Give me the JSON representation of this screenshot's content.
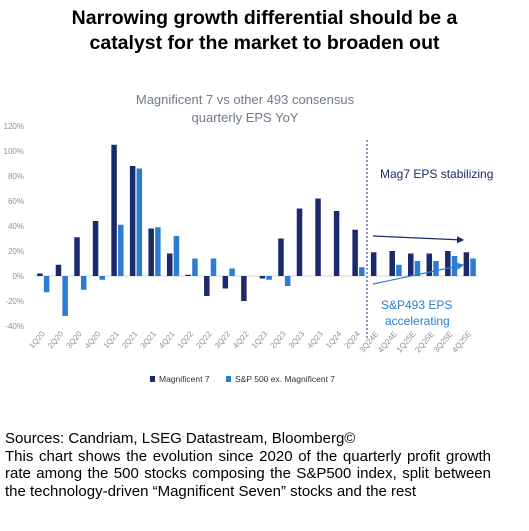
{
  "headline": {
    "line1": "Narrowing growth differential should be a",
    "line2": "catalyst for the market to broaden out"
  },
  "colors": {
    "mag7": "#1b2a6b",
    "sp493": "#2b7cd3",
    "title_gray": "#6e7b8c",
    "axis_gray": "#9aa3ad",
    "annotation_dark": "#1b2a6b",
    "annotation_blue": "#2b7cd3"
  },
  "chart_data": {
    "type": "bar",
    "title_line1": "Magnificent 7 vs other 493 consensus",
    "title_line2": "quarterly EPS YoY",
    "ylim": [
      -40,
      120
    ],
    "yticks": [
      "120%",
      "100%",
      "80%",
      "60%",
      "40%",
      "20%",
      "0%",
      "-20%",
      "-40%"
    ],
    "categories": [
      "1Q20",
      "2Q20",
      "3Q20",
      "4Q20",
      "1Q21",
      "2Q21",
      "3Q21",
      "4Q21",
      "1Q22",
      "2Q22",
      "3Q22",
      "4Q22",
      "1Q23",
      "2Q23",
      "3Q23",
      "4Q23",
      "1Q24",
      "2Q24",
      "3Q24E",
      "4Q24E",
      "1Q25E",
      "2Q25E",
      "3Q25E",
      "4Q25E"
    ],
    "series": [
      {
        "name": "Magnificent 7",
        "values": [
          2,
          9,
          31,
          44,
          105,
          88,
          38,
          18,
          1,
          -16,
          -10,
          -20,
          -2,
          30,
          54,
          62,
          52,
          37,
          19,
          20,
          18,
          18,
          20,
          19
        ]
      },
      {
        "name": "S&P 500 ex. Magnificent 7",
        "values": [
          -13,
          -32,
          -11,
          -3,
          41,
          86,
          39,
          32,
          14,
          14,
          6,
          0,
          -3,
          -8,
          0,
          0,
          0,
          7,
          0,
          9,
          12,
          12,
          16,
          14
        ]
      }
    ],
    "annotations": {
      "mag7": "Mag7 EPS stabilizing",
      "sp493_line1": "S&P493 EPS",
      "sp493_line2": "accelerating"
    },
    "legend_position": "bottom"
  },
  "footer": {
    "sources": "Sources: Candriam, LSEG Datastream, Bloomberg©",
    "description": "This chart shows the evolution since 2020 of the quarterly profit growth rate among the 500 stocks composing the S&P500 index, split between the technology-driven “Magnificent Seven” stocks and the rest"
  }
}
